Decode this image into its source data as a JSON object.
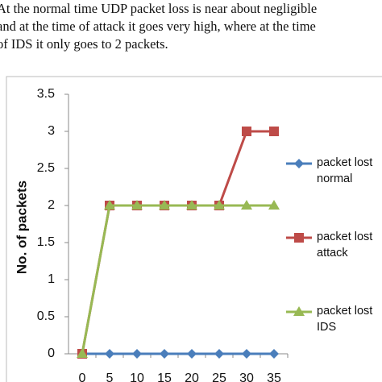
{
  "text": {
    "lines": [
      "At the normal time UDP packet loss is near about negligible",
      "and at the time of attack it goes very high, where at the time",
      "of IDS it only goes to 2 packets."
    ]
  },
  "chart_data": {
    "type": "line",
    "ylabel": "No. of packets",
    "categories": [
      "0",
      "5",
      "10",
      "15",
      "20",
      "25",
      "30",
      "35"
    ],
    "series": [
      {
        "name": "packet lost normal",
        "color": "#4a7ebb",
        "marker": "diamond",
        "values": [
          0,
          0,
          0,
          0,
          0,
          0,
          0,
          0
        ]
      },
      {
        "name": "packet lost attack",
        "color": "#be4b48",
        "marker": "square",
        "values": [
          0,
          2,
          2,
          2,
          2,
          2,
          3,
          3
        ]
      },
      {
        "name": "packet lost IDS",
        "color": "#98b954",
        "marker": "triangle",
        "values": [
          0,
          2,
          2,
          2,
          2,
          2,
          2,
          2
        ]
      }
    ],
    "ylim": [
      0,
      3.5
    ],
    "yticks": [
      0,
      0.5,
      1,
      1.5,
      2,
      2.5,
      3,
      3.5
    ],
    "grid": false,
    "legend": "right"
  }
}
